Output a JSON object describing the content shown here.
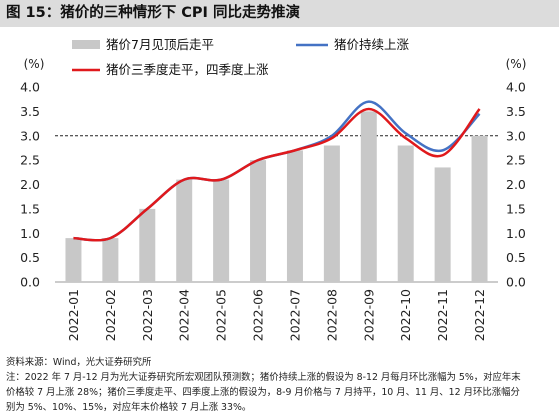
{
  "header": {
    "title": "图 15：猪价的三种情形下 CPI 同比走势推演"
  },
  "chart_data": {
    "type": "bar",
    "title": "图 15：猪价的三种情形下 CPI 同比走势推演",
    "ylabel_left": "(%)",
    "ylabel_right": "(%)",
    "ylim": [
      0,
      4.0
    ],
    "yticks": [
      "0.0",
      "0.5",
      "1.0",
      "1.5",
      "2.0",
      "2.5",
      "3.0",
      "3.5",
      "4.0"
    ],
    "reference_line": 3.0,
    "categories": [
      "2022-01",
      "2022-02",
      "2022-03",
      "2022-04",
      "2022-05",
      "2022-06",
      "2022-07",
      "2022-08",
      "2022-09",
      "2022-10",
      "2022-11",
      "2022-12"
    ],
    "series": [
      {
        "name": "猪价7月见顶后走平",
        "kind": "bar",
        "color": "#c8c8c8",
        "values": [
          0.9,
          0.9,
          1.5,
          2.1,
          2.1,
          2.5,
          2.7,
          2.8,
          3.5,
          2.8,
          2.35,
          3.0
        ]
      },
      {
        "name": "猪价持续上涨",
        "kind": "line",
        "color": "#4472c4",
        "values": [
          0.9,
          0.9,
          1.5,
          2.1,
          2.1,
          2.5,
          2.7,
          3.0,
          3.7,
          3.05,
          2.7,
          3.45
        ]
      },
      {
        "name": "猪价三季度走平，四季度上涨",
        "kind": "line",
        "color": "#e0191c",
        "values": [
          0.9,
          0.9,
          1.5,
          2.1,
          2.1,
          2.5,
          2.7,
          2.95,
          3.55,
          2.95,
          2.6,
          3.55
        ]
      }
    ],
    "legend": "top"
  },
  "footer": {
    "source": "资料来源：Wind，光大证券研究所",
    "note_line1": "注：2022 年 7 月-12 月为光大证券研究所宏观团队预测数；猪价持续上涨的假设为 8-12 月每月环比涨幅为 5%，对应年末",
    "note_line2": "价格较 7 月上涨 28%；猪价三季度走平、四季度上涨的假设为，8-9 月价格与 7 月持平，10 月、11 月、12 月环比涨幅分",
    "note_line3": "别为 5%、10%、15%，对应年末价格较 7 月上涨 33%。"
  }
}
